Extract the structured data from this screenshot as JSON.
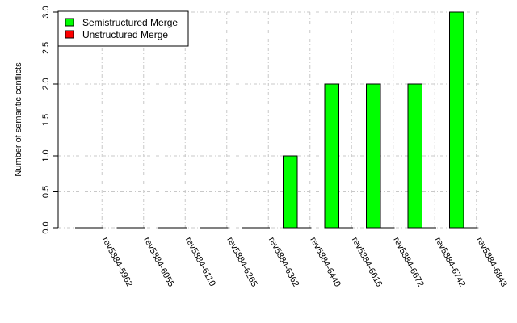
{
  "chart_data": {
    "type": "bar",
    "title": "",
    "xlabel": "",
    "ylabel": "Number of semantic conflicts",
    "ylim": [
      0,
      3
    ],
    "yticks": [
      "0.0",
      "0.5",
      "1.0",
      "1.5",
      "2.0",
      "2.5",
      "3.0"
    ],
    "grid": true,
    "legend_position": "top-left",
    "categories": [
      "rev5884-5962",
      "rev5884-6055",
      "rev5884-6110",
      "rev5884-6265",
      "rev5884-6362",
      "rev5884-6440",
      "rev5884-6616",
      "rev5884-6672",
      "rev5884-6742",
      "rev5884-6843"
    ],
    "series": [
      {
        "name": "Semistructured Merge",
        "color": "#00ff00",
        "values": [
          0,
          0,
          0,
          0,
          0,
          1,
          2,
          2,
          2,
          3
        ]
      },
      {
        "name": "Unstructured Merge",
        "color": "#ff0000",
        "values": [
          0,
          0,
          0,
          0,
          0,
          0,
          0,
          0,
          0,
          0
        ]
      }
    ]
  }
}
